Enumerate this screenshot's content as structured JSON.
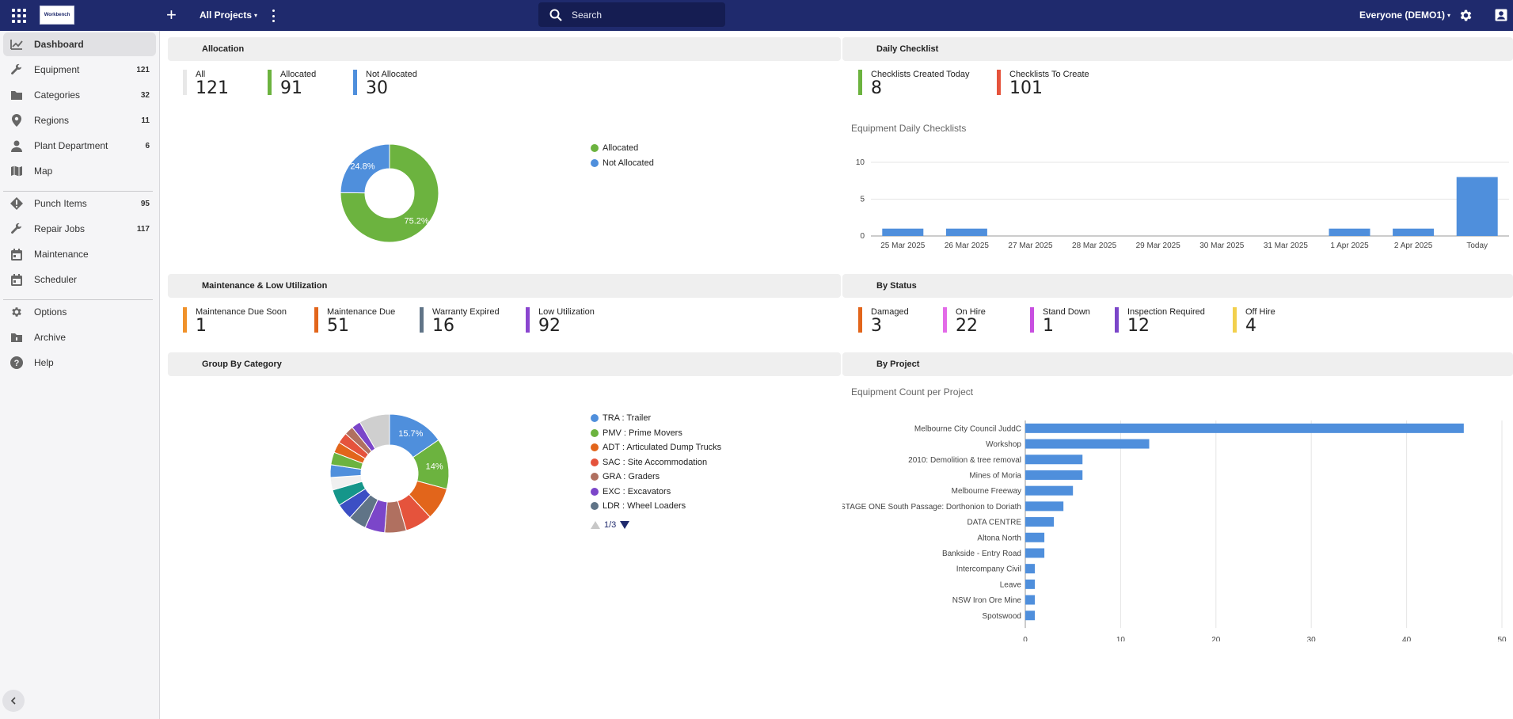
{
  "topbar": {
    "logo_text": "Workbench",
    "projects_label": "All Projects",
    "search_placeholder": "Search",
    "user_label": "Everyone (DEMO1)"
  },
  "sidebar": {
    "items": [
      {
        "label": "Dashboard",
        "count": "",
        "icon": "chart-icon",
        "active": true
      },
      {
        "label": "Equipment",
        "count": "121",
        "icon": "wrench-icon"
      },
      {
        "label": "Categories",
        "count": "32",
        "icon": "folder-icon"
      },
      {
        "label": "Regions",
        "count": "11",
        "icon": "pin-icon"
      },
      {
        "label": "Plant Department",
        "count": "6",
        "icon": "person-icon"
      },
      {
        "label": "Map",
        "count": "",
        "icon": "map-icon"
      },
      {
        "label": "Punch Items",
        "count": "95",
        "icon": "alert-icon"
      },
      {
        "label": "Repair Jobs",
        "count": "117",
        "icon": "wrench-icon"
      },
      {
        "label": "Maintenance",
        "count": "",
        "icon": "calendar-icon"
      },
      {
        "label": "Scheduler",
        "count": "",
        "icon": "calendar-icon"
      },
      {
        "label": "Options",
        "count": "",
        "icon": "gear-icon"
      },
      {
        "label": "Archive",
        "count": "",
        "icon": "archive-icon"
      },
      {
        "label": "Help",
        "count": "",
        "icon": "help-icon"
      }
    ]
  },
  "allocation": {
    "title": "Allocation",
    "stats": [
      {
        "label": "All",
        "value": "121",
        "color": "#e8e8e8"
      },
      {
        "label": "Allocated",
        "value": "91",
        "color": "#6cb33f"
      },
      {
        "label": "Not Allocated",
        "value": "30",
        "color": "#4f8fdc"
      }
    ],
    "legend": [
      {
        "label": "Allocated",
        "color": "#6cb33f"
      },
      {
        "label": "Not Allocated",
        "color": "#4f8fdc"
      }
    ]
  },
  "daily_checklist": {
    "title": "Daily Checklist",
    "stats": [
      {
        "label": "Checklists Created Today",
        "value": "8",
        "color": "#6cb33f"
      },
      {
        "label": "Checklists To Create",
        "value": "101",
        "color": "#e5533c"
      }
    ]
  },
  "maintenance": {
    "title": "Maintenance & Low Utilization",
    "stats": [
      {
        "label": "Maintenance Due Soon",
        "value": "1",
        "color": "#f0922b"
      },
      {
        "label": "Maintenance Due",
        "value": "51",
        "color": "#e2651b"
      },
      {
        "label": "Warranty Expired",
        "value": "16",
        "color": "#607487"
      },
      {
        "label": "Low Utilization",
        "value": "92",
        "color": "#8a45cf"
      }
    ]
  },
  "by_status": {
    "title": "By Status",
    "stats": [
      {
        "label": "Damaged",
        "value": "3",
        "color": "#e2651b"
      },
      {
        "label": "On Hire",
        "value": "22",
        "color": "#e36be8"
      },
      {
        "label": "Stand Down",
        "value": "1",
        "color": "#c84fe0"
      },
      {
        "label": "Inspection Required",
        "value": "12",
        "color": "#7b46c9"
      },
      {
        "label": "Off Hire",
        "value": "4",
        "color": "#f2d04d"
      }
    ]
  },
  "group_by_category": {
    "title": "Group By Category",
    "legend": [
      {
        "label": "TRA : Trailer",
        "color": "#4f8fdc"
      },
      {
        "label": "PMV : Prime Movers",
        "color": "#6cb33f"
      },
      {
        "label": "ADT : Articulated Dump Trucks",
        "color": "#e2651b"
      },
      {
        "label": "SAC : Site Accommodation",
        "color": "#e5533c"
      },
      {
        "label": "GRA : Graders",
        "color": "#b07060"
      },
      {
        "label": "EXC : Excavators",
        "color": "#7b46c9"
      },
      {
        "label": "LDR : Wheel Loaders",
        "color": "#607487"
      }
    ],
    "pager": "1/3"
  },
  "by_project": {
    "title": "By Project"
  },
  "chart_data": [
    {
      "type": "pie",
      "title": "",
      "categories": [
        "Allocated",
        "Not Allocated"
      ],
      "values": [
        75.2,
        24.8
      ],
      "data_labels": [
        "75.2%",
        "24.8%"
      ],
      "colors": [
        "#6cb33f",
        "#4f8fdc"
      ],
      "donut": true,
      "legend": "right"
    },
    {
      "type": "bar",
      "title": "Equipment Daily Checklists",
      "categories": [
        "25 Mar 2025",
        "26 Mar 2025",
        "27 Mar 2025",
        "28 Mar 2025",
        "29 Mar 2025",
        "30 Mar 2025",
        "31 Mar 2025",
        "1 Apr 2025",
        "2 Apr 2025",
        "Today"
      ],
      "values": [
        1,
        1,
        0,
        0,
        0,
        0,
        0,
        1,
        1,
        8
      ],
      "ylim": [
        0,
        10
      ],
      "yticks": [
        0,
        5,
        10
      ],
      "grid": true,
      "color": "#4f8fdc"
    },
    {
      "type": "pie",
      "title": "",
      "donut": true,
      "data_labels": [
        "15.7%",
        "14%"
      ],
      "slices": [
        {
          "name": "TRA : Trailer",
          "value": 15.7,
          "color": "#4f8fdc"
        },
        {
          "name": "PMV : Prime Movers",
          "value": 14.0,
          "color": "#6cb33f"
        },
        {
          "name": "ADT : Articulated Dump Trucks",
          "value": 9.0,
          "color": "#e2651b"
        },
        {
          "name": "SAC : Site Accommodation",
          "value": 7.5,
          "color": "#e5533c"
        },
        {
          "name": "GRA : Graders",
          "value": 6.0,
          "color": "#b07060"
        },
        {
          "name": "EXC : Excavators",
          "value": 5.5,
          "color": "#7b46c9"
        },
        {
          "name": "LDR : Wheel Loaders",
          "value": 5.0,
          "color": "#607487"
        },
        {
          "name": "",
          "value": 4.5,
          "color": "#3c4fc4"
        },
        {
          "name": "",
          "value": 4.5,
          "color": "#15968a"
        },
        {
          "name": "",
          "value": 3.5,
          "color": "#f0f0f0"
        },
        {
          "name": "",
          "value": 3.5,
          "color": "#4f8fdc"
        },
        {
          "name": "",
          "value": 3.5,
          "color": "#6cb33f"
        },
        {
          "name": "",
          "value": 3.0,
          "color": "#e2651b"
        },
        {
          "name": "",
          "value": 3.0,
          "color": "#e5533c"
        },
        {
          "name": "",
          "value": 2.5,
          "color": "#b07060"
        },
        {
          "name": "",
          "value": 2.5,
          "color": "#7b46c9"
        },
        {
          "name": "",
          "value": 8.5,
          "color": "#cfcfcf"
        }
      ],
      "legend": "right"
    },
    {
      "type": "bar",
      "orientation": "horizontal",
      "title": "Equipment Count per Project",
      "categories": [
        "Melbourne City Council JuddC",
        "Workshop",
        "2010: Demolition & tree removal",
        "Mines of Moria",
        "Melbourne Freeway",
        "STAGE ONE South Passage: Dorthonion to Doriath",
        "DATA CENTRE",
        "Altona North",
        "Bankside - Entry Road",
        "Intercompany Civil",
        "Leave",
        "NSW Iron Ore Mine",
        "Spotswood"
      ],
      "values": [
        46,
        13,
        6,
        6,
        5,
        4,
        3,
        2,
        2,
        1,
        1,
        1,
        1
      ],
      "xlim": [
        0,
        50
      ],
      "xticks": [
        0,
        10,
        20,
        30,
        40,
        50
      ],
      "grid": true,
      "color": "#4f8fdc"
    }
  ]
}
